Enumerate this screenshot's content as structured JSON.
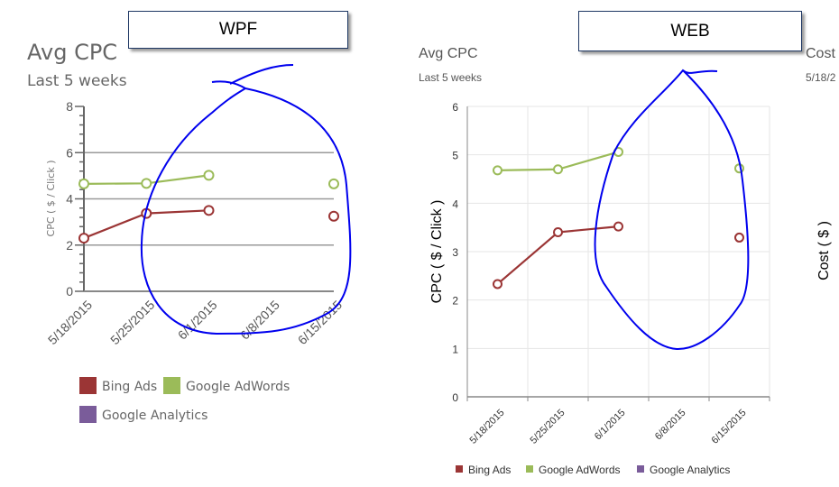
{
  "labels": {
    "wpf": "WPF",
    "web": "WEB"
  },
  "colors": {
    "bing": "#9b3535",
    "adwords": "#9bbb59",
    "analytics": "#7a5c9a",
    "annotation": "#0000ee"
  },
  "chart_data": [
    {
      "id": "wpf",
      "type": "line",
      "title": "Avg CPC",
      "subtitle": "Last 5 weeks",
      "ylabel": "CPC ( $ / Click )",
      "ylim": [
        0,
        8
      ],
      "yticks": [
        "0",
        "2",
        "4",
        "6",
        "8"
      ],
      "categories": [
        "5/18/2015",
        "5/25/2015",
        "6/1/2015",
        "6/8/2015",
        "6/15/2015"
      ],
      "series": [
        {
          "name": "Bing Ads",
          "values": [
            2.3,
            3.37,
            3.5,
            null,
            3.25
          ]
        },
        {
          "name": "Google AdWords",
          "values": [
            4.65,
            4.67,
            5.02,
            null,
            4.65
          ]
        },
        {
          "name": "Google Analytics",
          "values": [
            null,
            null,
            null,
            null,
            null
          ]
        }
      ],
      "legend": "bottom"
    },
    {
      "id": "web",
      "type": "line",
      "title": "Avg CPC",
      "subtitle": "Last 5 weeks",
      "ylabel": "CPC ( $ / Click )",
      "ylim": [
        0,
        6
      ],
      "yticks": [
        "0",
        "1",
        "2",
        "3",
        "4",
        "5",
        "6"
      ],
      "categories": [
        "5/18/2015",
        "5/25/2015",
        "6/1/2015",
        "6/8/2015",
        "6/15/2015"
      ],
      "series": [
        {
          "name": "Bing Ads",
          "values": [
            2.33,
            3.4,
            3.52,
            null,
            3.29
          ]
        },
        {
          "name": "Google AdWords",
          "values": [
            4.68,
            4.7,
            5.06,
            null,
            4.72
          ]
        },
        {
          "name": "Google Analytics",
          "values": [
            null,
            null,
            null,
            null,
            null
          ]
        }
      ],
      "legend": "bottom"
    },
    {
      "id": "cost",
      "type": "line",
      "title": "Cost",
      "subtitle": "5/18/2",
      "ylabel": "Cost ( $ )"
    }
  ]
}
